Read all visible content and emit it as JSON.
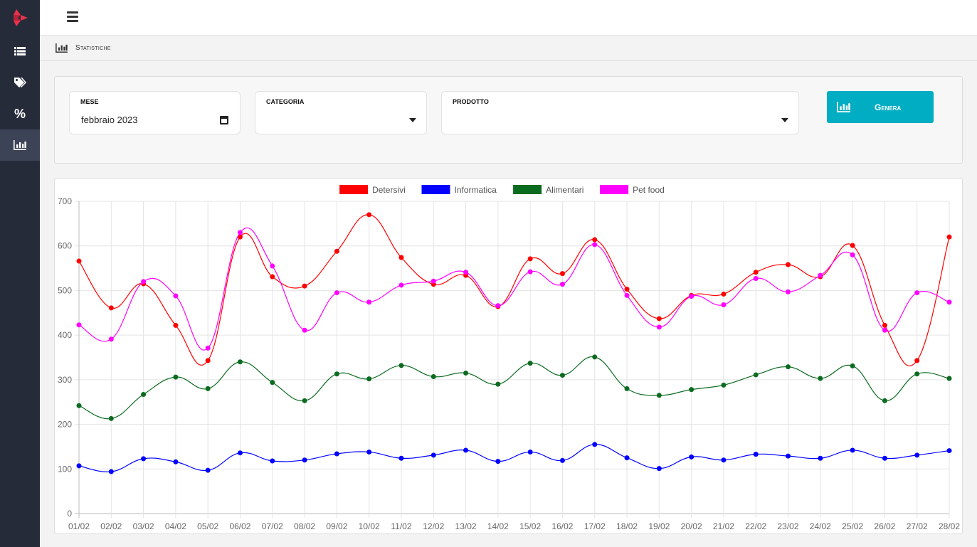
{
  "sidebar": {
    "items": [
      {
        "icon": "list-icon"
      },
      {
        "icon": "tags-icon"
      },
      {
        "icon": "percent-icon",
        "glyph": "%"
      },
      {
        "icon": "bar-chart-icon",
        "active": true
      }
    ]
  },
  "breadcrumb": {
    "label": "Statistiche"
  },
  "filters": {
    "mese": {
      "label": "MESE",
      "value": "febbraio 2023"
    },
    "categoria": {
      "label": "CATEGORIA",
      "value": ""
    },
    "prodotto": {
      "label": "PRODOTTO",
      "value": ""
    },
    "generate_label": "Genera"
  },
  "colors": {
    "accent": "#00adc2",
    "sidebar": "#262b3a"
  },
  "chart_data": {
    "type": "line",
    "categories": [
      "01/02",
      "02/02",
      "03/02",
      "04/02",
      "05/02",
      "06/02",
      "07/02",
      "08/02",
      "09/02",
      "10/02",
      "11/02",
      "12/02",
      "13/02",
      "14/02",
      "15/02",
      "16/02",
      "17/02",
      "18/02",
      "19/02",
      "20/02",
      "21/02",
      "22/02",
      "23/02",
      "24/02",
      "25/02",
      "26/02",
      "27/02",
      "28/02"
    ],
    "ylim": [
      0,
      700
    ],
    "yticks": [
      0,
      100,
      200,
      300,
      400,
      500,
      600,
      700
    ],
    "grid": true,
    "legend_position": "top",
    "series": [
      {
        "name": "Detersivi",
        "color": "#ff0000",
        "values": [
          566,
          461,
          515,
          422,
          343,
          620,
          531,
          510,
          588,
          670,
          574,
          514,
          534,
          464,
          571,
          538,
          614,
          503,
          437,
          489,
          492,
          541,
          558,
          531,
          601,
          422,
          343,
          620
        ]
      },
      {
        "name": "Informatica",
        "color": "#0000ff",
        "values": [
          107,
          94,
          123,
          116,
          97,
          136,
          118,
          120,
          134,
          138,
          124,
          131,
          142,
          117,
          138,
          119,
          155,
          125,
          101,
          127,
          120,
          133,
          129,
          124,
          142,
          124,
          131,
          141
        ]
      },
      {
        "name": "Alimentari",
        "color": "#0b6b1f",
        "values": [
          242,
          213,
          267,
          306,
          280,
          340,
          294,
          253,
          313,
          302,
          332,
          307,
          315,
          290,
          337,
          310,
          351,
          280,
          265,
          278,
          288,
          311,
          329,
          303,
          331,
          253,
          313,
          303
        ]
      },
      {
        "name": "Pet food",
        "color": "#ff00ff",
        "values": [
          423,
          391,
          520,
          488,
          371,
          630,
          555,
          411,
          495,
          474,
          512,
          521,
          541,
          466,
          542,
          514,
          603,
          489,
          418,
          487,
          468,
          527,
          497,
          534,
          580,
          411,
          495,
          474
        ]
      }
    ]
  }
}
